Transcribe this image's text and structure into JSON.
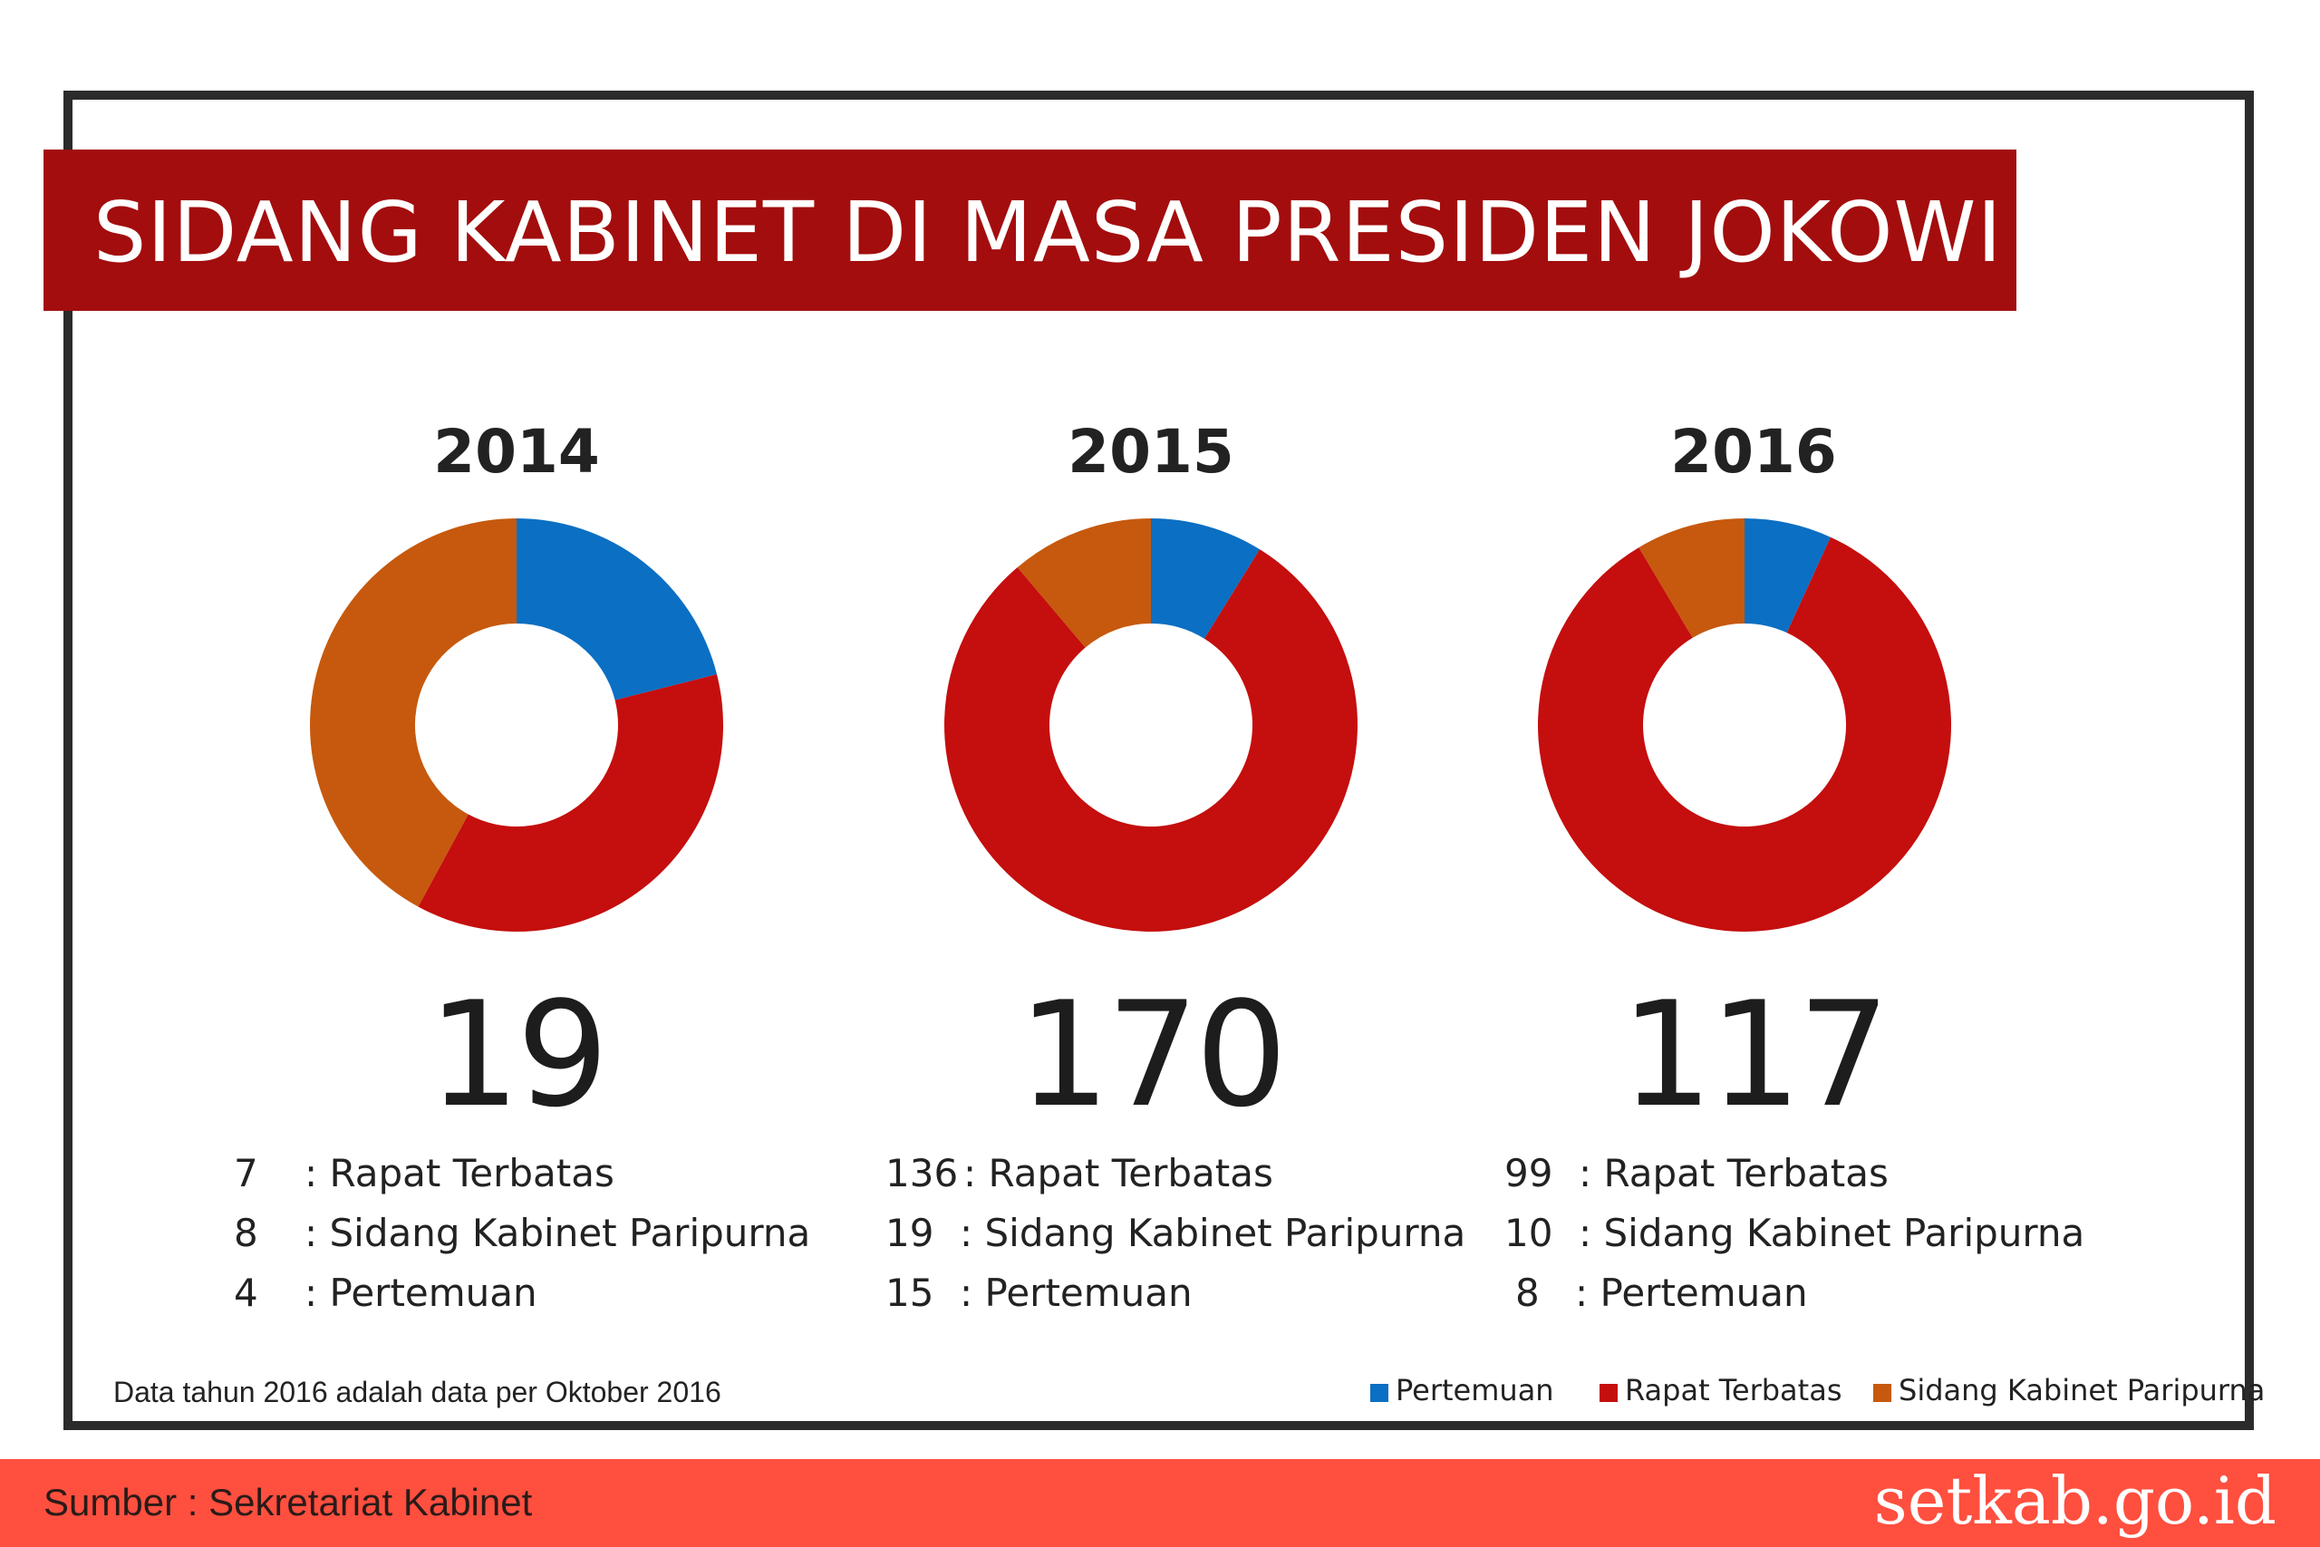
{
  "title": "SIDANG KABINET DI MASA PRESIDEN JOKOWI",
  "colors": {
    "pertemuan": "#0b6fc3",
    "rapat_terbatas": "#c50e0e",
    "sidang_kabinet_paripurna": "#c6590d",
    "banner": "#a30d0d",
    "footer": "#ff4f3f"
  },
  "chart_data": [
    {
      "type": "pie",
      "title": "2014",
      "total_label": "19",
      "slices": [
        {
          "name": "Pertemuan",
          "value": 4,
          "color": "#0b6fc3"
        },
        {
          "name": "Rapat Terbatas",
          "value": 7,
          "color": "#c50e0e"
        },
        {
          "name": "Sidang Kabinet Paripurna",
          "value": 8,
          "color": "#c6590d"
        }
      ],
      "breakdown": [
        {
          "value": "7",
          "label": ": Rapat Terbatas"
        },
        {
          "value": "8",
          "label": ": Sidang Kabinet Paripurna"
        },
        {
          "value": "4",
          "label": ": Pertemuan"
        }
      ]
    },
    {
      "type": "pie",
      "title": "2015",
      "total_label": "170",
      "slices": [
        {
          "name": "Pertemuan",
          "value": 15,
          "color": "#0b6fc3"
        },
        {
          "name": "Rapat Terbatas",
          "value": 136,
          "color": "#c50e0e"
        },
        {
          "name": "Sidang Kabinet Paripurna",
          "value": 19,
          "color": "#c6590d"
        }
      ],
      "breakdown": [
        {
          "value": "136",
          "label": ": Rapat Terbatas"
        },
        {
          "value": "19",
          "label": ": Sidang Kabinet Paripurna"
        },
        {
          "value": "15",
          "label": ": Pertemuan"
        }
      ]
    },
    {
      "type": "pie",
      "title": "2016",
      "total_label": "117",
      "slices": [
        {
          "name": "Pertemuan",
          "value": 8,
          "color": "#0b6fc3"
        },
        {
          "name": "Rapat Terbatas",
          "value": 99,
          "color": "#c50e0e"
        },
        {
          "name": "Sidang Kabinet Paripurna",
          "value": 10,
          "color": "#c6590d"
        }
      ],
      "breakdown": [
        {
          "value": "99",
          "label": ": Rapat Terbatas"
        },
        {
          "value": "10",
          "label": ": Sidang Kabinet Paripurna"
        },
        {
          "value": "8",
          "label": ": Pertemuan"
        }
      ]
    }
  ],
  "note": "Data tahun 2016 adalah data per Oktober 2016",
  "legend": [
    {
      "label": "Pertemuan",
      "color": "#0b6fc3"
    },
    {
      "label": "Rapat Terbatas",
      "color": "#c50e0e"
    },
    {
      "label": "Sidang Kabinet Paripurna",
      "color": "#c6590d"
    }
  ],
  "footer": {
    "source": "Sumber : Sekretariat Kabinet",
    "brand": "setkab.go.id"
  }
}
